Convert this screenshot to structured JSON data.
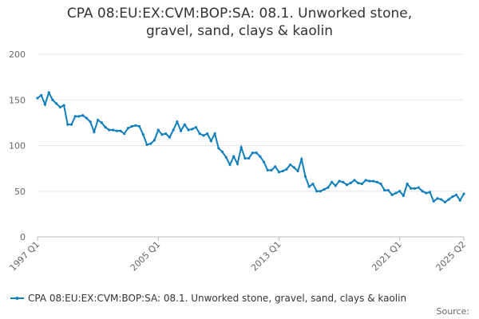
{
  "chart_data": {
    "type": "line",
    "title": "CPA 08:EU:EX:CVM:BOP:SA: 08.1. Unworked stone, gravel, sand, clays & kaolin",
    "categories": [
      "1997 Q1",
      null,
      null,
      null,
      null,
      null,
      null,
      null,
      null,
      null,
      null,
      null,
      null,
      null,
      null,
      null,
      null,
      null,
      null,
      null,
      null,
      null,
      null,
      null,
      null,
      null,
      null,
      null,
      null,
      null,
      null,
      null,
      "2005 Q1",
      null,
      null,
      null,
      null,
      null,
      null,
      null,
      null,
      null,
      null,
      null,
      null,
      null,
      null,
      null,
      null,
      null,
      null,
      null,
      null,
      null,
      null,
      null,
      null,
      null,
      null,
      null,
      null,
      null,
      null,
      null,
      "2013 Q1",
      null,
      null,
      null,
      null,
      null,
      null,
      null,
      null,
      null,
      null,
      null,
      null,
      null,
      null,
      null,
      null,
      null,
      null,
      null,
      null,
      null,
      null,
      null,
      null,
      null,
      null,
      null,
      null,
      null,
      null,
      null,
      "2021 Q1",
      null,
      null,
      null,
      null,
      null,
      null,
      null,
      null,
      null,
      null,
      null,
      null,
      null,
      null,
      null,
      null,
      "2025 Q2"
    ],
    "series": [
      {
        "name": "CPA 08:EU:EX:CVM:BOP:SA: 08.1. Unworked stone, gravel, sand, clays & kaolin",
        "color": "#0f7fbc",
        "values": [
          152,
          155,
          145,
          158,
          150,
          146,
          142,
          144,
          123,
          123,
          132,
          132,
          133,
          130,
          126,
          115,
          128,
          125,
          120,
          117,
          117,
          116,
          116,
          113,
          119,
          121,
          122,
          121,
          112,
          101,
          102,
          106,
          117,
          112,
          113,
          109,
          117,
          126,
          116,
          123,
          117,
          118,
          120,
          113,
          111,
          113,
          105,
          113,
          97,
          93,
          87,
          79,
          88,
          80,
          98,
          86,
          86,
          92,
          92,
          88,
          82,
          73,
          73,
          77,
          71,
          72,
          74,
          79,
          76,
          72,
          85,
          66,
          55,
          58,
          50,
          50,
          52,
          54,
          60,
          56,
          61,
          60,
          57,
          59,
          62,
          59,
          58,
          62,
          61,
          61,
          60,
          58,
          51,
          51,
          46,
          48,
          50,
          45,
          58,
          53,
          53,
          54,
          50,
          48,
          49,
          39,
          42,
          41,
          38,
          41,
          44,
          46,
          40,
          47
        ]
      }
    ],
    "ylim": [
      0,
      200
    ],
    "yticks": [
      0,
      50,
      100,
      150,
      200
    ],
    "grid": true,
    "source": "Source:"
  }
}
